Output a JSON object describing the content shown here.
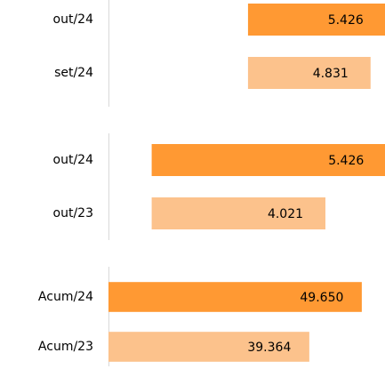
{
  "chart_data": [
    {
      "type": "bar",
      "categories": [
        "out/24",
        "set/24"
      ],
      "values": [
        5.426,
        4.831
      ],
      "colors": [
        "#ff9933",
        "#fcc28c"
      ],
      "xlim": [
        -5.5,
        5.4
      ]
    },
    {
      "type": "bar",
      "categories": [
        "out/24",
        "out/23"
      ],
      "values": [
        5.426,
        4.021
      ],
      "colors": [
        "#ff9933",
        "#fcc28c"
      ],
      "xlim": [
        -1,
        5.4
      ]
    },
    {
      "type": "bar",
      "categories": [
        "Acum/24",
        "Acum/23"
      ],
      "values": [
        49.65,
        39.364
      ],
      "value_labels": [
        "49.650",
        "39.364"
      ],
      "colors": [
        "#ff9933",
        "#fcc28c"
      ],
      "xlim": [
        0,
        54.2
      ]
    }
  ]
}
